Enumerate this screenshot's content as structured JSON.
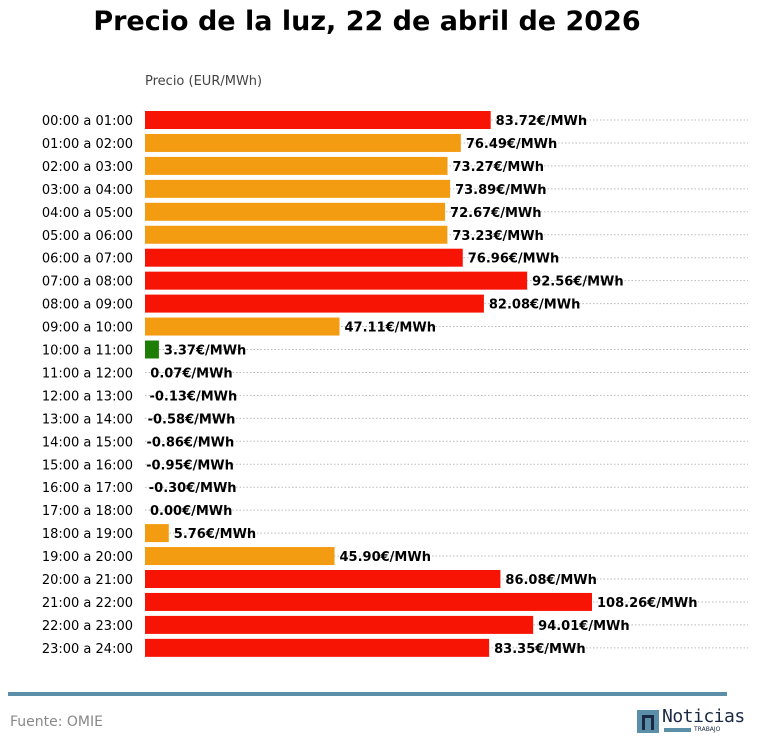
{
  "chart_data": {
    "type": "bar",
    "orientation": "horizontal",
    "title": "Precio de la luz, 22 de abril de 2026",
    "xlabel": "Precio (EUR/MWh)",
    "value_suffix": "€/MWh",
    "categories": [
      "00:00 a 01:00",
      "01:00 a 02:00",
      "02:00 a 03:00",
      "03:00 a 04:00",
      "04:00 a 05:00",
      "05:00 a 06:00",
      "06:00 a 07:00",
      "07:00 a 08:00",
      "08:00 a 09:00",
      "09:00 a 10:00",
      "10:00 a 11:00",
      "11:00 a 12:00",
      "12:00 a 13:00",
      "13:00 a 14:00",
      "14:00 a 15:00",
      "15:00 a 16:00",
      "16:00 a 17:00",
      "17:00 a 18:00",
      "18:00 a 19:00",
      "19:00 a 20:00",
      "20:00 a 21:00",
      "21:00 a 22:00",
      "22:00 a 23:00",
      "23:00 a 24:00"
    ],
    "values": [
      83.72,
      76.49,
      73.27,
      73.89,
      72.67,
      73.23,
      76.96,
      92.56,
      82.08,
      47.11,
      3.37,
      0.07,
      -0.13,
      -0.58,
      -0.86,
      -0.95,
      -0.3,
      0.0,
      5.76,
      45.9,
      86.08,
      108.26,
      94.01,
      83.35
    ],
    "labels": [
      "83.72€/MWh",
      "76.49€/MWh",
      "73.27€/MWh",
      "73.89€/MWh",
      "72.67€/MWh",
      "73.23€/MWh",
      "76.96€/MWh",
      "92.56€/MWh",
      "82.08€/MWh",
      "47.11€/MWh",
      "3.37€/MWh",
      "0.07€/MWh",
      "-0.13€/MWh",
      "-0.58€/MWh",
      "-0.86€/MWh",
      "-0.95€/MWh",
      "-0.30€/MWh",
      "0.00€/MWh",
      "5.76€/MWh",
      "45.90€/MWh",
      "86.08€/MWh",
      "108.26€/MWh",
      "94.01€/MWh",
      "83.35€/MWh"
    ],
    "bar_colors": [
      "red",
      "orange",
      "orange",
      "orange",
      "orange",
      "orange",
      "red",
      "red",
      "red",
      "orange",
      "green",
      "green",
      "green",
      "green",
      "green",
      "green",
      "green",
      "green",
      "orange",
      "orange",
      "red",
      "red",
      "red",
      "red"
    ],
    "colors": {
      "red": "#f71405",
      "orange": "#f39c12",
      "green": "#1e7d05"
    },
    "grid": "horizontal dotted",
    "xlim": [
      0,
      130
    ]
  },
  "footer": {
    "source": "Fuente: OMIE",
    "logo_text": "Noticias",
    "logo_sub": "TRABAJO"
  }
}
